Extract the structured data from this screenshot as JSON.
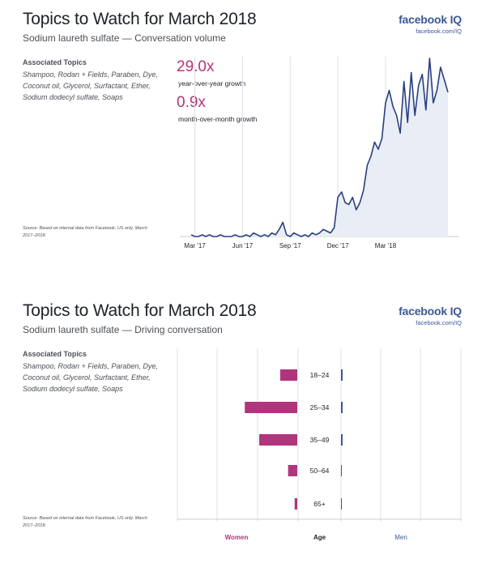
{
  "brand": {
    "name": "facebook IQ",
    "url": "facebook.com/IQ"
  },
  "colors": {
    "line": "#2a3f7e",
    "area": "#e9eef6",
    "women": "#b0357d",
    "men": "#3b5998",
    "stat": "#b0357d",
    "grid": "#dde0e6"
  },
  "panel1": {
    "title": "Topics to Watch for March 2018",
    "subtitle": "Sodium laureth sulfate — Conversation volume",
    "associated_heading": "Associated Topics",
    "associated_topics": "Shampoo, Rodan + Fields, Paraben, Dye, Coconut oil, Glycerol, Surfactant, Ether, Sodium dodecyl sulfate, Soaps",
    "source": "Source: Based on internal data from Facebook, US only. March 2017–2018.",
    "stats": [
      {
        "value": "29.0x",
        "label": "year-over-year growth"
      },
      {
        "value": "0.9x",
        "label": "month-over-month growth"
      }
    ]
  },
  "panel2": {
    "title": "Topics to Watch for March 2018",
    "subtitle": "Sodium laureth sulfate — Driving conversation",
    "associated_heading": "Associated Topics",
    "associated_topics": "Shampoo, Rodan + Fields, Paraben, Dye, Coconut oil, Glycerol, Surfactant, Ether, Sodium dodecyl sulfate, Soaps",
    "source": "Source: Based on internal data from Facebook, US only. March 2017–2018."
  },
  "chart_data": [
    {
      "type": "area",
      "x_ticks": [
        "Mar '17",
        "Jun '17",
        "Sep '17",
        "Dec '17",
        "Mar '18"
      ],
      "x_tick_weeks": [
        1,
        14,
        27,
        40,
        53
      ],
      "y_axis_labels": false,
      "ylim": [
        0,
        100
      ],
      "grid": "vertical",
      "values": [
        1,
        0,
        0,
        1,
        0,
        1,
        0,
        0,
        1,
        0,
        0,
        0,
        1,
        0,
        0,
        1,
        0,
        2,
        1,
        0,
        1,
        0,
        2,
        1,
        4,
        8,
        1,
        0,
        2,
        1,
        0,
        1,
        0,
        2,
        1,
        2,
        4,
        3,
        2,
        5,
        22,
        25,
        19,
        18,
        22,
        15,
        19,
        26,
        40,
        45,
        53,
        49,
        55,
        75,
        82,
        73,
        68,
        58,
        87,
        64,
        92,
        68,
        85,
        91,
        71,
        100,
        75,
        82,
        95,
        88,
        81
      ]
    },
    {
      "type": "bar",
      "orientation": "horizontal-diverging",
      "categories": [
        "18–24",
        "25–34",
        "35–49",
        "50–64",
        "65+"
      ],
      "center_label": "Age",
      "series": [
        {
          "name": "Women",
          "values": [
            13,
            40,
            29,
            7,
            2
          ]
        },
        {
          "name": "Men",
          "values": [
            1,
            1,
            1,
            0.5,
            0.3
          ]
        }
      ],
      "grid": "vertical"
    }
  ]
}
